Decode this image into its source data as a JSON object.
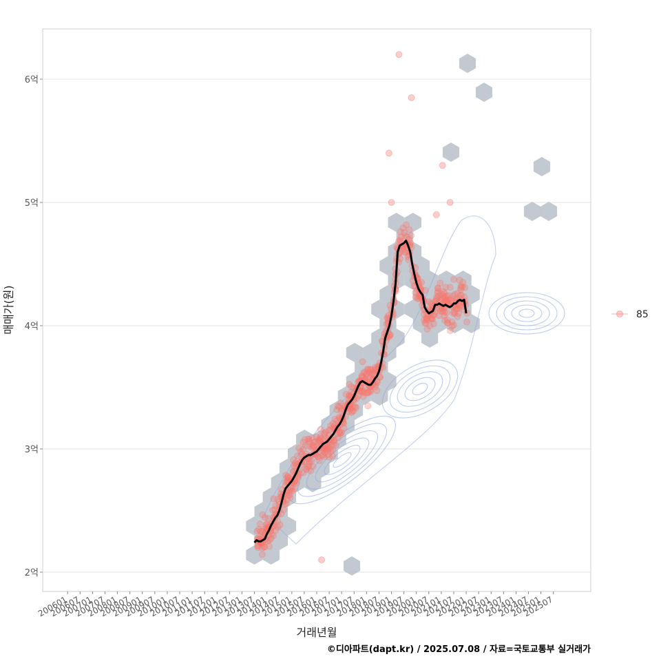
{
  "chart_data": {
    "type": "scatter",
    "xlabel": "거래년월",
    "ylabel": "매매가(원)",
    "credit": "©디아파트(dapt.kr) / 2025.07.08 / 자료=국토교통부 실거래가",
    "y_ticks": [
      {
        "value": 2,
        "label": "2억"
      },
      {
        "value": 3,
        "label": "3억"
      },
      {
        "value": 4,
        "label": "4억"
      },
      {
        "value": 5,
        "label": "5억"
      },
      {
        "value": 6,
        "label": "6억"
      }
    ],
    "ylim": [
      1.85,
      6.4
    ],
    "x_ticks": [
      "200601",
      "200607",
      "200701",
      "200707",
      "200801",
      "200807",
      "200901",
      "200907",
      "201001",
      "201007",
      "201101",
      "201107",
      "201201",
      "201207",
      "201301",
      "201307",
      "201401",
      "201407",
      "201501",
      "201507",
      "201601",
      "201607",
      "201701",
      "201707",
      "201801",
      "201807",
      "201901",
      "201907",
      "202001",
      "202007",
      "202101",
      "202107",
      "202201",
      "202207",
      "202301",
      "202307",
      "202401",
      "202407",
      "202501",
      "202507"
    ],
    "xlim": [
      "2005-01",
      "2027-01"
    ],
    "grid": true,
    "legend": {
      "position": "right",
      "entries": [
        {
          "label": "85",
          "color": "#f8766d"
        }
      ]
    },
    "colors": {
      "points": "#f8766d",
      "hex": "#b4bcc4",
      "contour": "#8fa8e6",
      "trend": "#000000"
    },
    "trend": [
      [
        "2013-07",
        2.24
      ],
      [
        "2013-08",
        2.26
      ],
      [
        "2013-09",
        2.25
      ],
      [
        "2013-10",
        2.25
      ],
      [
        "2013-11",
        2.26
      ],
      [
        "2013-12",
        2.27
      ],
      [
        "2014-01",
        2.31
      ],
      [
        "2014-02",
        2.34
      ],
      [
        "2014-03",
        2.38
      ],
      [
        "2014-04",
        2.41
      ],
      [
        "2014-05",
        2.44
      ],
      [
        "2014-06",
        2.46
      ],
      [
        "2014-07",
        2.5
      ],
      [
        "2014-08",
        2.56
      ],
      [
        "2014-09",
        2.63
      ],
      [
        "2014-10",
        2.68
      ],
      [
        "2014-11",
        2.7
      ],
      [
        "2014-12",
        2.72
      ],
      [
        "2015-01",
        2.74
      ],
      [
        "2015-02",
        2.77
      ],
      [
        "2015-03",
        2.8
      ],
      [
        "2015-04",
        2.84
      ],
      [
        "2015-05",
        2.88
      ],
      [
        "2015-06",
        2.91
      ],
      [
        "2015-07",
        2.93
      ],
      [
        "2015-08",
        2.94
      ],
      [
        "2015-09",
        2.95
      ],
      [
        "2015-10",
        2.95
      ],
      [
        "2015-11",
        2.96
      ],
      [
        "2015-12",
        2.97
      ],
      [
        "2016-01",
        2.98
      ],
      [
        "2016-02",
        3.0
      ],
      [
        "2016-03",
        3.02
      ],
      [
        "2016-04",
        3.04
      ],
      [
        "2016-05",
        3.05
      ],
      [
        "2016-06",
        3.06
      ],
      [
        "2016-07",
        3.08
      ],
      [
        "2016-08",
        3.1
      ],
      [
        "2016-09",
        3.12
      ],
      [
        "2016-10",
        3.15
      ],
      [
        "2016-11",
        3.18
      ],
      [
        "2016-12",
        3.2
      ],
      [
        "2017-01",
        3.23
      ],
      [
        "2017-02",
        3.27
      ],
      [
        "2017-03",
        3.32
      ],
      [
        "2017-04",
        3.36
      ],
      [
        "2017-05",
        3.38
      ],
      [
        "2017-06",
        3.4
      ],
      [
        "2017-07",
        3.43
      ],
      [
        "2017-08",
        3.47
      ],
      [
        "2017-09",
        3.51
      ],
      [
        "2017-10",
        3.54
      ],
      [
        "2017-11",
        3.55
      ],
      [
        "2017-12",
        3.54
      ],
      [
        "2018-01",
        3.53
      ],
      [
        "2018-02",
        3.52
      ],
      [
        "2018-03",
        3.52
      ],
      [
        "2018-04",
        3.54
      ],
      [
        "2018-05",
        3.57
      ],
      [
        "2018-06",
        3.59
      ],
      [
        "2018-07",
        3.63
      ],
      [
        "2018-08",
        3.7
      ],
      [
        "2018-09",
        3.79
      ],
      [
        "2018-10",
        3.9
      ],
      [
        "2018-11",
        3.95
      ],
      [
        "2018-12",
        4.0
      ],
      [
        "2019-01",
        4.08
      ],
      [
        "2019-02",
        4.2
      ],
      [
        "2019-03",
        4.35
      ],
      [
        "2019-04",
        4.6
      ],
      [
        "2019-05",
        4.65
      ],
      [
        "2019-06",
        4.66
      ],
      [
        "2019-07",
        4.67
      ],
      [
        "2019-08",
        4.69
      ],
      [
        "2019-09",
        4.65
      ],
      [
        "2019-10",
        4.6
      ],
      [
        "2019-11",
        4.5
      ],
      [
        "2019-12",
        4.42
      ],
      [
        "2020-01",
        4.35
      ],
      [
        "2020-02",
        4.3
      ],
      [
        "2020-03",
        4.27
      ],
      [
        "2020-04",
        4.25
      ],
      [
        "2020-05",
        4.15
      ],
      [
        "2020-06",
        4.12
      ],
      [
        "2020-07",
        4.1
      ],
      [
        "2020-08",
        4.11
      ],
      [
        "2020-09",
        4.12
      ],
      [
        "2020-10",
        4.17
      ],
      [
        "2020-11",
        4.17
      ],
      [
        "2020-12",
        4.18
      ],
      [
        "2021-01",
        4.17
      ],
      [
        "2021-02",
        4.16
      ],
      [
        "2021-03",
        4.17
      ],
      [
        "2021-04",
        4.16
      ],
      [
        "2021-05",
        4.15
      ],
      [
        "2021-06",
        4.16
      ],
      [
        "2021-07",
        4.18
      ],
      [
        "2021-08",
        4.18
      ],
      [
        "2021-09",
        4.2
      ],
      [
        "2021-10",
        4.21
      ],
      [
        "2021-11",
        4.2
      ],
      [
        "2021-12",
        4.21
      ],
      [
        "2022-01",
        4.1
      ]
    ]
  }
}
